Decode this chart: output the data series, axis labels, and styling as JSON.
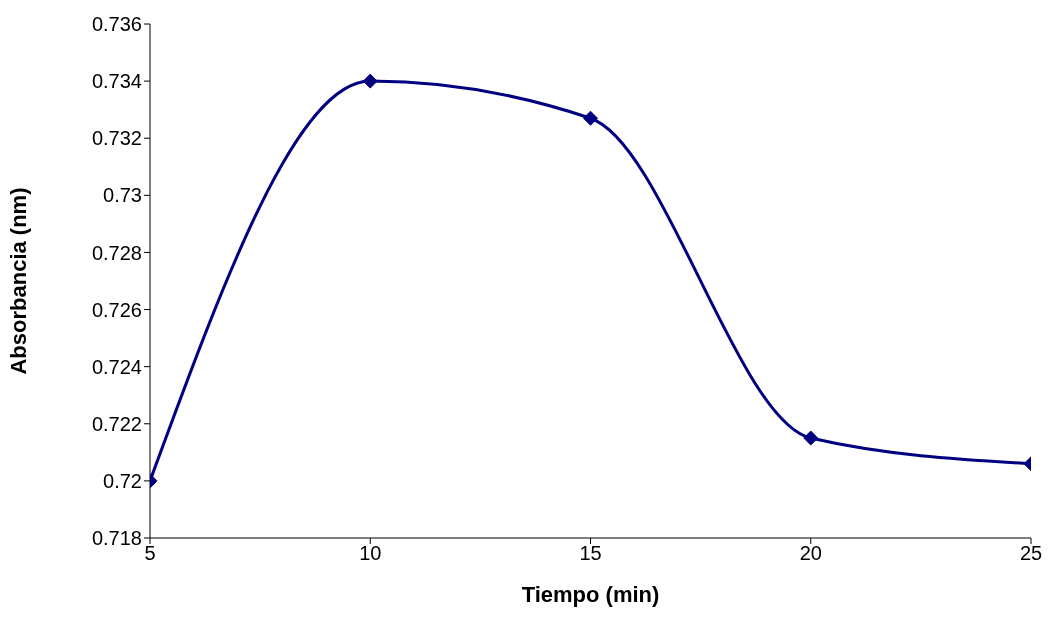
{
  "chart_data": {
    "type": "line",
    "xlabel": "Tiempo (min)",
    "ylabel": "Absorbancia (nm)",
    "x": [
      5,
      10,
      15,
      20,
      25
    ],
    "series": [
      {
        "color": "#000080",
        "values": [
          0.72,
          0.734,
          0.7327,
          0.7215,
          0.7206
        ]
      }
    ],
    "xlim": [
      5,
      25
    ],
    "xticks": [
      5,
      10,
      15,
      20,
      25
    ],
    "ylim": [
      0.718,
      0.736
    ],
    "yticks": [
      0.718,
      0.72,
      0.722,
      0.724,
      0.726,
      0.728,
      0.73,
      0.732,
      0.734,
      0.736
    ],
    "grid": false,
    "legend": false,
    "marker": "diamond",
    "line_style": "solid"
  }
}
